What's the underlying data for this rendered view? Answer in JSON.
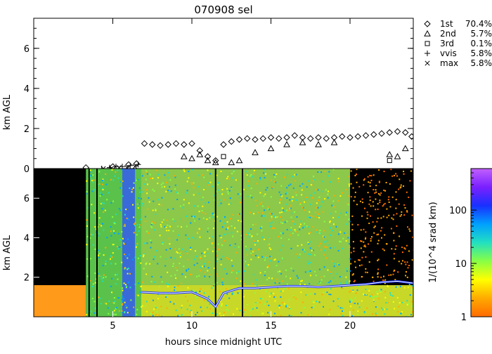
{
  "chart_data": [
    {
      "type": "scatter",
      "title": "070908 sel",
      "xlabel": "",
      "ylabel": "km AGL",
      "xlim": [
        0,
        24
      ],
      "ylim": [
        0,
        7.5
      ],
      "yticks": [
        0,
        2,
        4,
        6
      ],
      "grid": false,
      "legend_position": "right",
      "series": [
        {
          "name": "1st",
          "percent": "70.4%",
          "marker": "diamond",
          "x": [
            3.3,
            5.0,
            6.0,
            6.5,
            7.0,
            7.5,
            8.0,
            8.5,
            9.0,
            9.5,
            10.0,
            10.5,
            11.0,
            11.5,
            12.0,
            12.5,
            13.0,
            13.5,
            14.0,
            14.5,
            15.0,
            15.5,
            16.0,
            16.5,
            17.0,
            17.5,
            18.0,
            18.5,
            19.0,
            19.5,
            20.0,
            20.5,
            21.0,
            21.5,
            22.0,
            22.5,
            23.0,
            23.5,
            23.9
          ],
          "y": [
            0.05,
            0.1,
            0.2,
            0.25,
            1.25,
            1.2,
            1.15,
            1.2,
            1.25,
            1.2,
            1.25,
            0.9,
            0.6,
            0.4,
            1.2,
            1.35,
            1.45,
            1.5,
            1.45,
            1.5,
            1.55,
            1.5,
            1.55,
            1.65,
            1.55,
            1.5,
            1.55,
            1.5,
            1.55,
            1.6,
            1.55,
            1.6,
            1.65,
            1.7,
            1.75,
            1.8,
            1.85,
            1.8,
            1.6
          ]
        },
        {
          "name": "2nd",
          "percent": "5.7%",
          "marker": "triangle",
          "x": [
            9.5,
            10.0,
            10.5,
            11.0,
            11.5,
            12.5,
            13.0,
            14.0,
            15.0,
            16.0,
            17.0,
            18.0,
            19.0,
            22.5,
            23.0,
            23.5
          ],
          "y": [
            0.6,
            0.5,
            0.7,
            0.4,
            0.3,
            0.3,
            0.4,
            0.8,
            1.0,
            1.2,
            1.3,
            1.2,
            1.3,
            0.7,
            0.6,
            1.0
          ]
        },
        {
          "name": "3rd",
          "percent": "0.1%",
          "marker": "square",
          "x": [
            12.0,
            22.5
          ],
          "y": [
            0.6,
            0.4
          ]
        },
        {
          "name": "vvis",
          "percent": "5.8%",
          "marker": "plus",
          "x": [
            4.3,
            4.8,
            5.2,
            5.6,
            6.1,
            6.6
          ],
          "y": [
            0.0,
            0.05,
            0.1,
            0.1,
            0.15,
            0.2
          ]
        },
        {
          "name": "max",
          "percent": "5.8%",
          "marker": "x",
          "x": [
            4.4,
            4.9,
            5.4,
            5.9,
            6.4
          ],
          "y": [
            0.0,
            0.0,
            0.05,
            0.05,
            0.1
          ]
        }
      ]
    },
    {
      "type": "heatmap",
      "title": "",
      "xlabel": "hours since midnight UTC",
      "ylabel": "km AGL",
      "xlim": [
        0,
        24
      ],
      "ylim": [
        0,
        7.5
      ],
      "xticks": [
        5,
        10,
        15,
        20
      ],
      "yticks": [
        2,
        4,
        6
      ],
      "colorbar": {
        "label": "1/(10^4 srad km)",
        "scale": "log",
        "range": [
          1,
          600
        ],
        "ticks": [
          1,
          10,
          100
        ],
        "colors": [
          "#ff6a00",
          "#ffaa00",
          "#ffff00",
          "#88ff44",
          "#22e0c0",
          "#00a0ff",
          "#1830ff",
          "#7a20ff",
          "#c060ff"
        ]
      },
      "regions": [
        {
          "x": [
            0,
            3.3
          ],
          "y": [
            1.6,
            7.5
          ],
          "value": "no data",
          "color": "#000000"
        },
        {
          "x": [
            0,
            3.3
          ],
          "y": [
            0,
            1.6
          ],
          "value": 5,
          "color": "#ff9a1a"
        },
        {
          "x": [
            3.3,
            6.8
          ],
          "y": [
            0,
            7.5
          ],
          "value": 30,
          "color": "#5ac24a"
        },
        {
          "x": [
            5.6,
            6.4
          ],
          "y": [
            0,
            7.5
          ],
          "value": 80,
          "color": "#3a6ad8"
        },
        {
          "x": [
            6.8,
            20.0
          ],
          "y": [
            1.6,
            7.5
          ],
          "value": 20,
          "color": "#8cc84a"
        },
        {
          "x": [
            6.8,
            24
          ],
          "y": [
            0,
            1.6
          ],
          "value": 8,
          "color": "#c8d828"
        },
        {
          "x": [
            20.0,
            24
          ],
          "y": [
            1.8,
            7.5
          ],
          "value": "no data",
          "color": "#000000"
        }
      ],
      "cloud_base": {
        "x": [
          6.8,
          8.0,
          9.0,
          10.0,
          11.0,
          11.5,
          12.0,
          13.0,
          14.0,
          15.0,
          16.0,
          17.0,
          18.0,
          19.0,
          20.0,
          21.0,
          22.0,
          23.0,
          24.0
        ],
        "y": [
          1.25,
          1.2,
          1.2,
          1.25,
          0.9,
          0.5,
          1.2,
          1.45,
          1.45,
          1.5,
          1.55,
          1.55,
          1.5,
          1.55,
          1.6,
          1.65,
          1.75,
          1.8,
          1.7
        ]
      }
    }
  ]
}
